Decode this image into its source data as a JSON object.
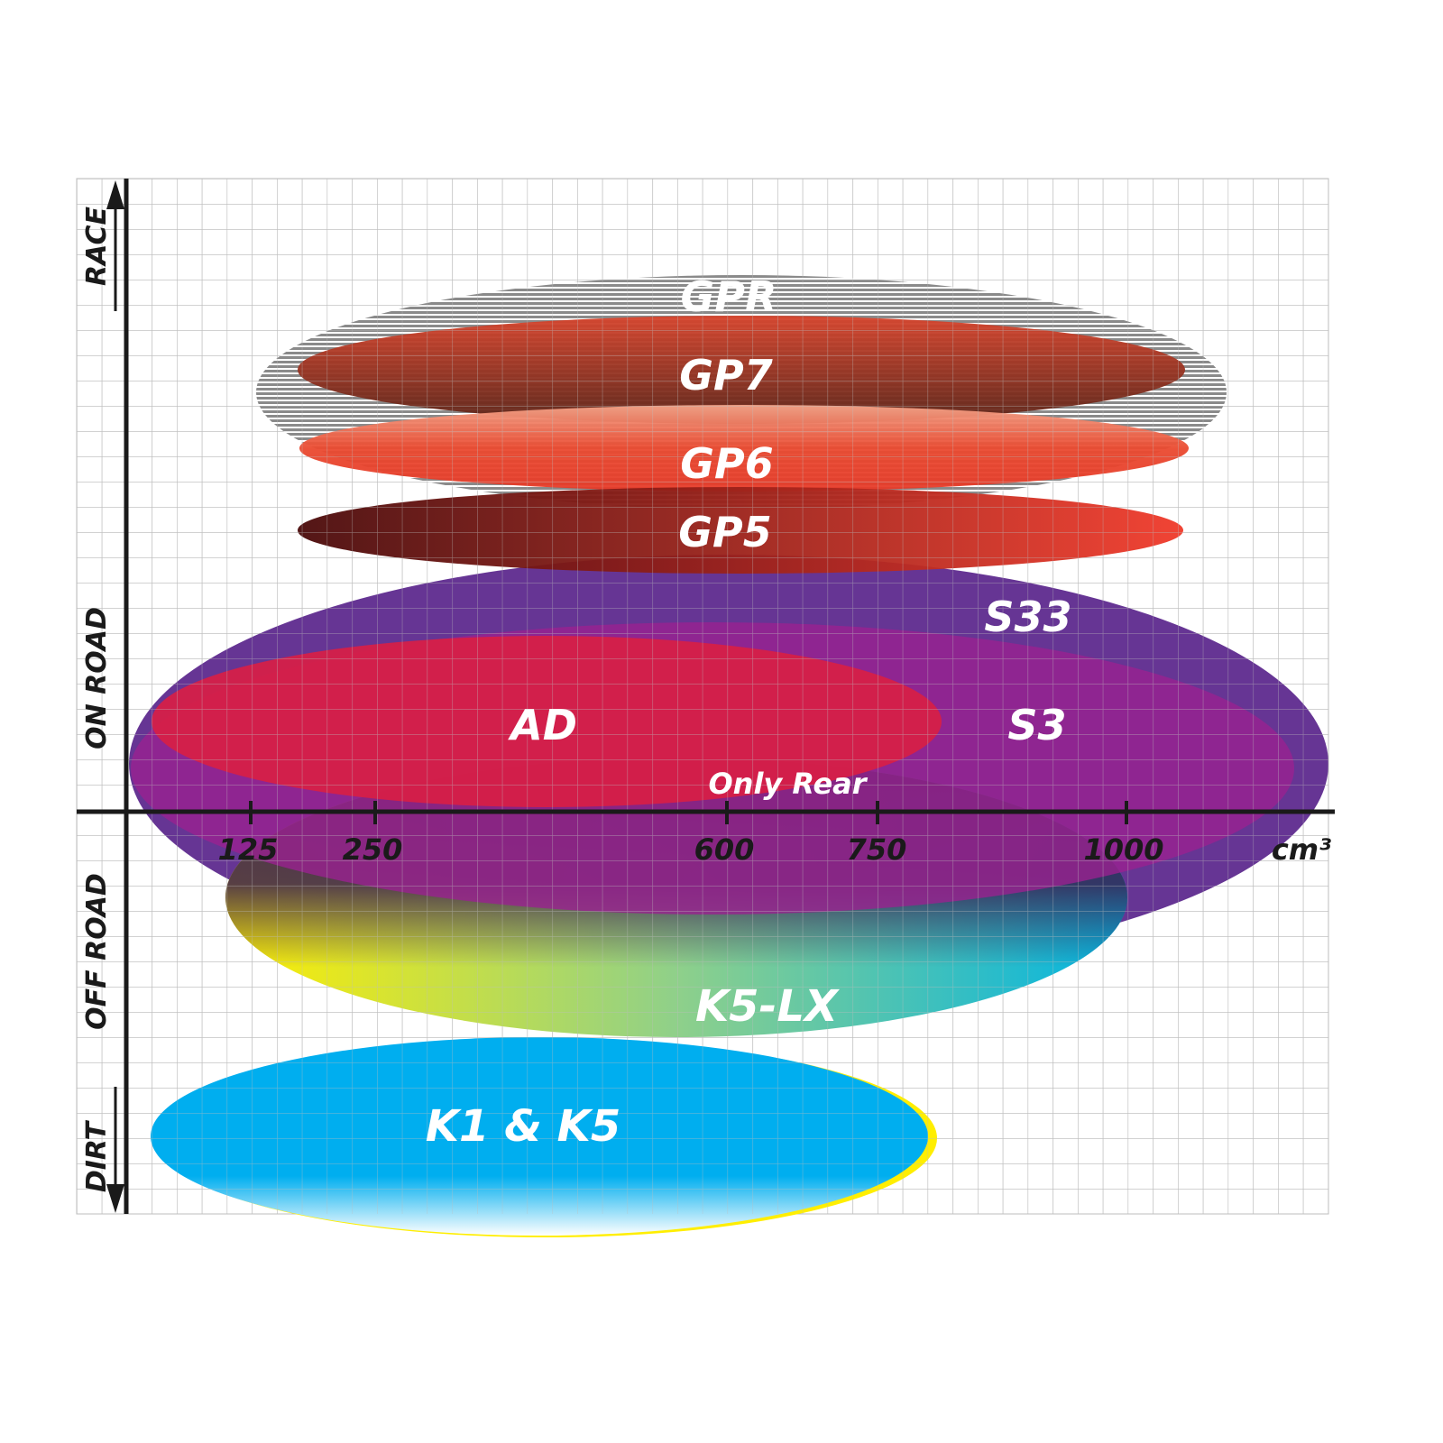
{
  "axes": {
    "y_labels": {
      "top": "RACE",
      "middle_upper": "ON ROAD",
      "middle_lower": "OFF ROAD",
      "bottom": "DIRT"
    },
    "x_ticks": [
      "125",
      "250",
      "600",
      "750",
      "1000"
    ],
    "x_unit": "cm³"
  },
  "products": [
    {
      "name": "GPR",
      "color": "#8a8a8a"
    },
    {
      "name": "GP7",
      "color": "#7a2a20"
    },
    {
      "name": "GP6",
      "color": "#e8452e"
    },
    {
      "name": "GP5",
      "color": "#b0201c"
    },
    {
      "name": "S33",
      "color": "#5e2a8e"
    },
    {
      "name": "S3",
      "color": "#9a2290"
    },
    {
      "name": "AD",
      "color": "#d81e45"
    },
    {
      "name": "K5-LX",
      "color": "#29b6d8",
      "note": "Only Rear"
    },
    {
      "name": "K1 & K5",
      "color": "#00aeef"
    }
  ]
}
